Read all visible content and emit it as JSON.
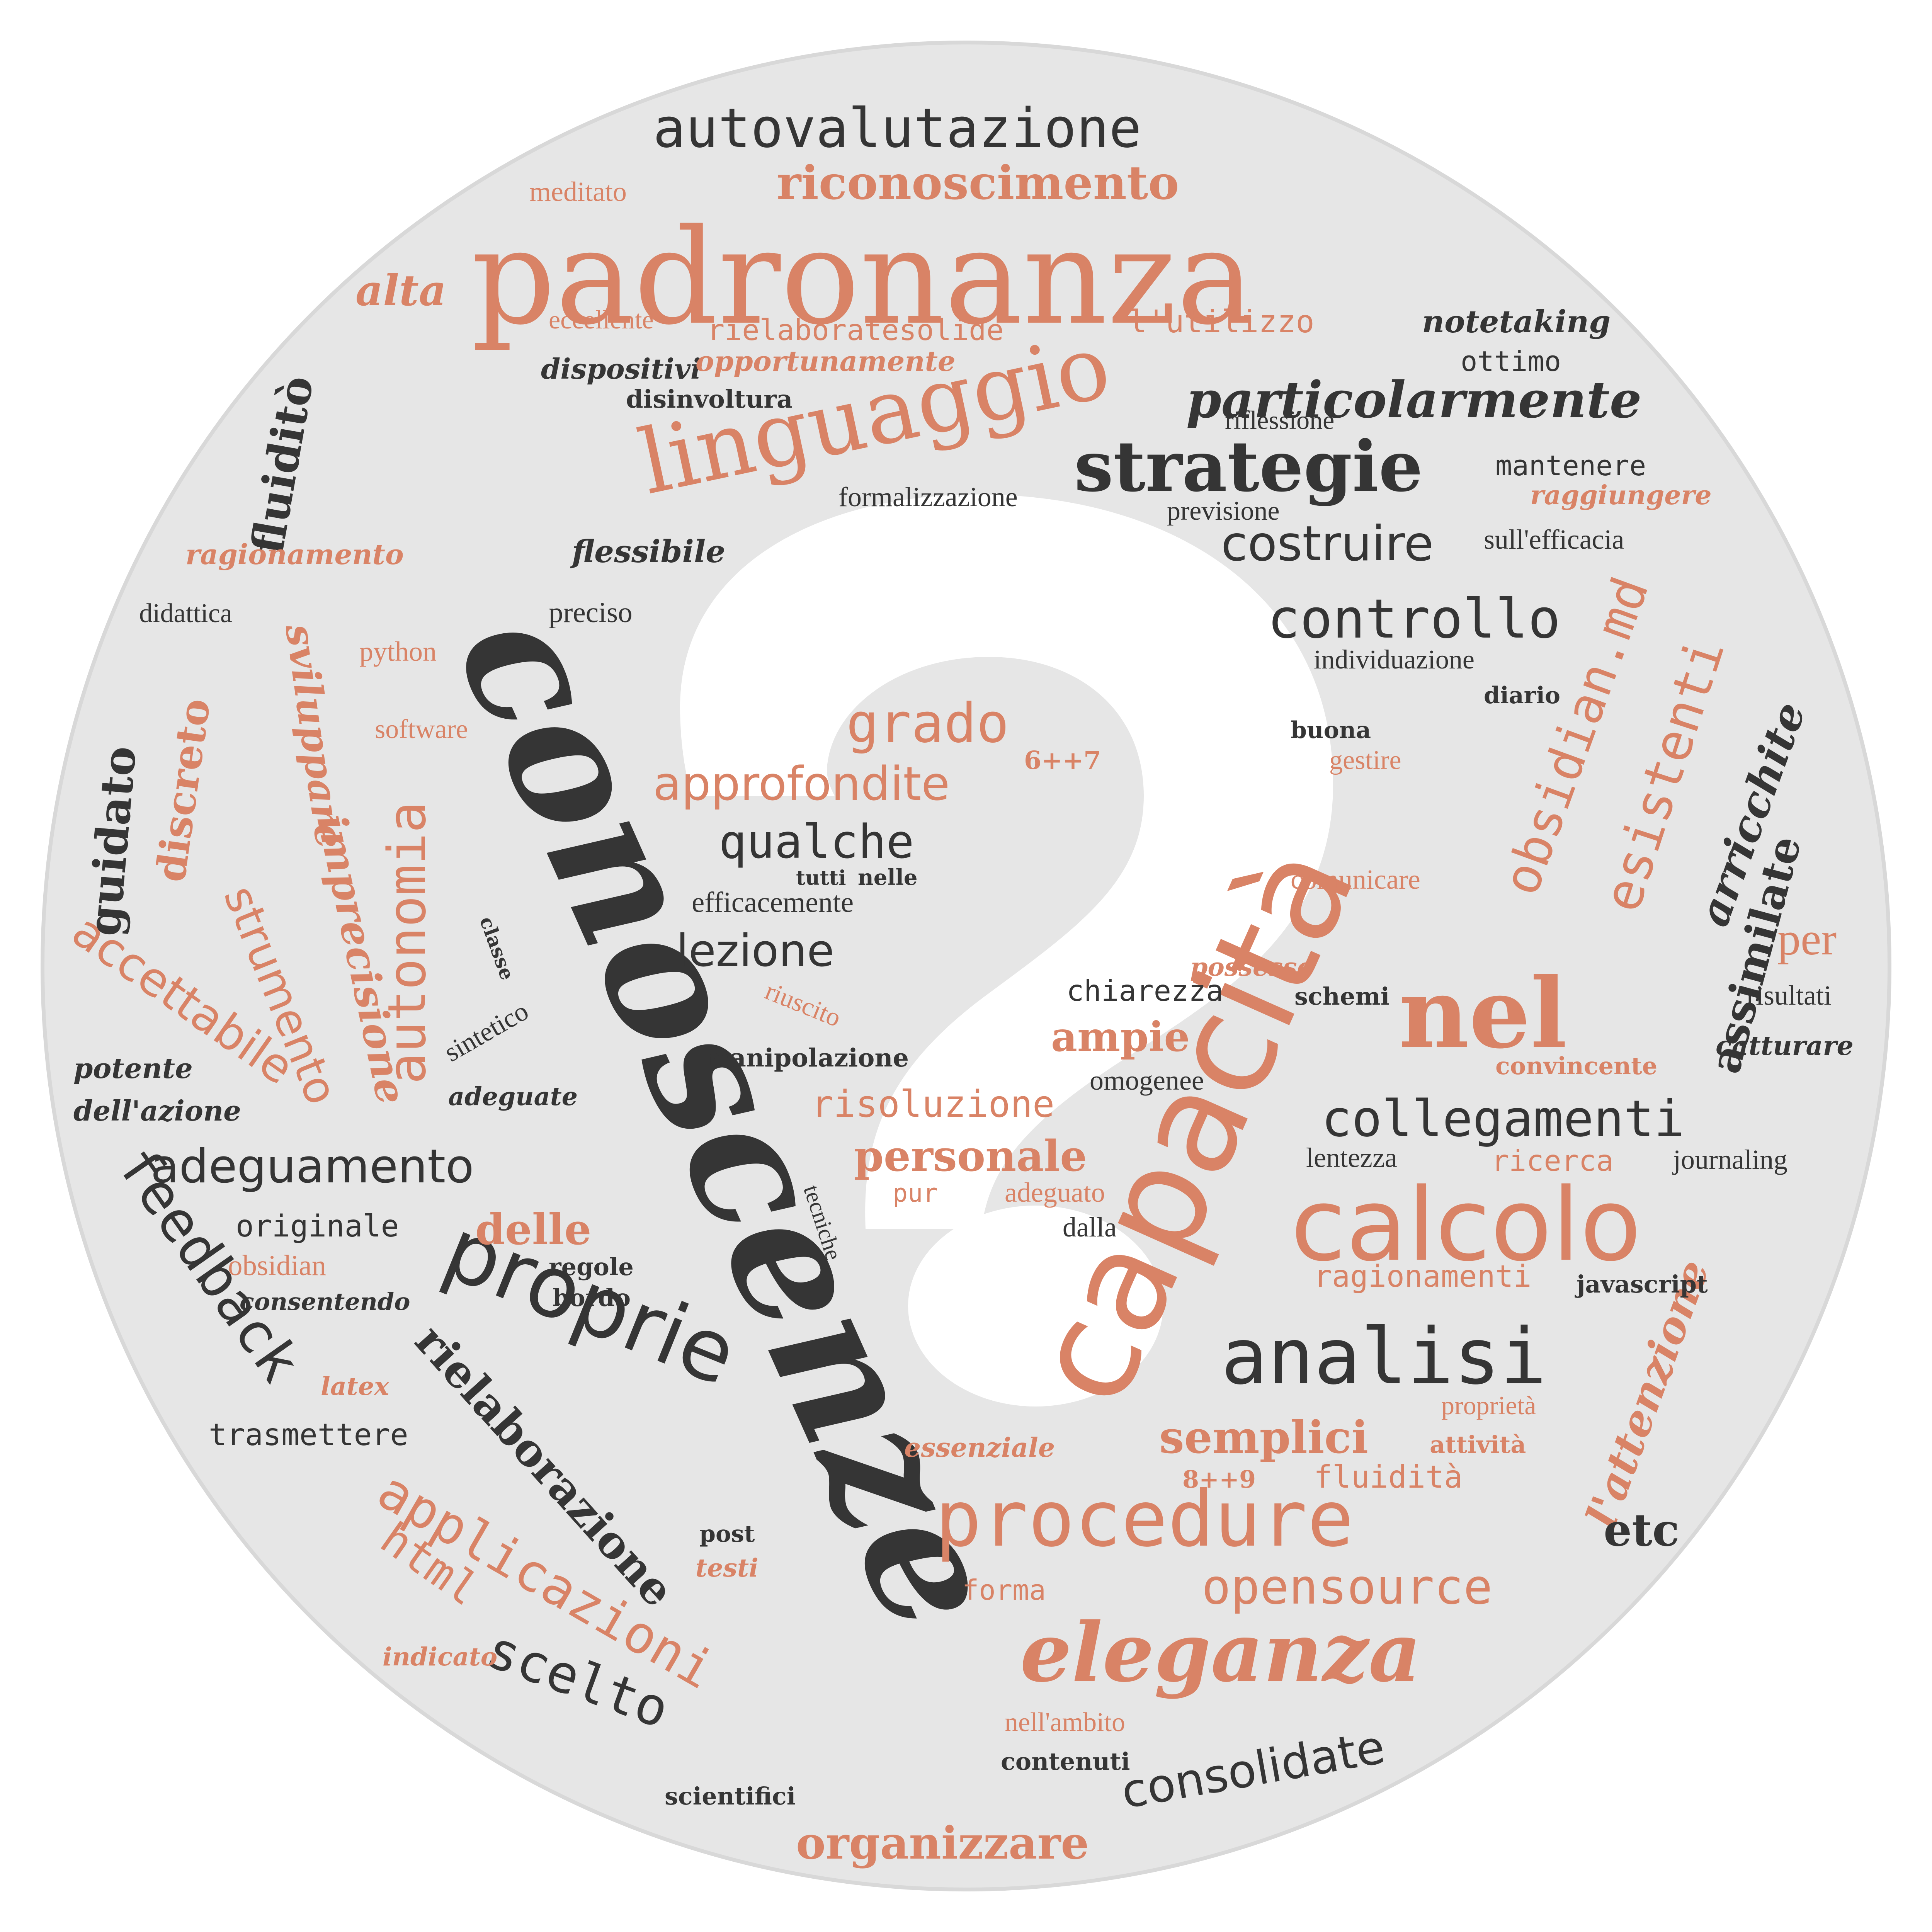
{
  "colors": {
    "background": "#ffffff",
    "disc": "#e6e6e6",
    "disc_edge": "#d8d8d8",
    "question_mark": "#ffffff",
    "orange": "#d98366",
    "dark": "#353535"
  },
  "words": {
    "conoscenze": "conoscenze",
    "padronanza": "padronanza",
    "capacita": "capacità",
    "linguaggio": "linguaggio",
    "calcolo": "calcolo",
    "proprie": "proprie",
    "procedure": "procedure",
    "eleganza": "eleganza",
    "nel": "nel",
    "analisi": "analisi",
    "strategie": "strategie",
    "autovalutazione": "autovalutazione",
    "riconoscimento": "riconoscimento",
    "particolarmente": "particolarmente",
    "collegamenti": "collegamenti",
    "adeguamento": "adeguamento",
    "feedback": "feedback",
    "rielaborazione": "rielaborazione",
    "applicazioni": "applicazioni",
    "scelto": "scelto",
    "controllo": "controllo",
    "costruire": "costruire",
    "obsidian_md": "obsidian.md",
    "esistenti": "esistenti",
    "arricchite": "arricchite",
    "assimilate": "assimilate",
    "grado": "grado",
    "approfondite": "approfondite",
    "qualche": "qualche",
    "lezione": "lezione",
    "autonomia": "autonomia",
    "strumento": "strumento",
    "accettabile": "accettabile",
    "imprecisione": "imprecisione",
    "sviluppare": "sviluppare",
    "discreto": "discreto",
    "guidato": "guidato",
    "fluidito": "fluiditò",
    "alta": "alta",
    "opensource": "opensource",
    "consolidate": "consolidate",
    "organizzare": "organizzare",
    "semplici": "semplici",
    "l_attenzione": "l'attenzione",
    "etc": "etc",
    "risoluzione": "risoluzione",
    "personale": "personale",
    "ampie": "ampie",
    "delle": "delle",
    "html": "html",
    "per": "per",
    "meditato": "meditato",
    "eccellente": "eccellente",
    "rielaboratesolide": "rielaboratesolide",
    "l_utilizzo": "l'utilizzo",
    "notetaking": "notetaking",
    "ottimo": "ottimo",
    "dispositivi": "dispositivi",
    "opportunamente": "opportunamente",
    "disinvoltura": "disinvoltura",
    "riflessione": "riflessione",
    "mantenere": "mantenere",
    "formalizzazione": "formalizzazione",
    "previsione": "previsione",
    "raggiungere": "raggiungere",
    "sull_efficacia": "sull'efficacia",
    "flessibile": "flessibile",
    "ragionamento": "ragionamento",
    "didattica": "didattica",
    "preciso": "preciso",
    "python": "python",
    "individuazione": "individuazione",
    "diario": "diario",
    "buona": "buona",
    "gestire": "gestire",
    "software": "software",
    "six_seven": "6++7",
    "tutti": "tutti",
    "nelle": "nelle",
    "efficacemente": "efficacemente",
    "comunicare": "comunicare",
    "classe": "classe",
    "possesso": "possesso",
    "riuscito": "riuscito",
    "chiarezza": "chiarezza",
    "schemi": "schemi",
    "risultati": "risultati",
    "sintetico": "sintetico",
    "potente": "potente",
    "manipolazione": "manipolazione",
    "convincente": "convincente",
    "catturare": "catturare",
    "dell_azione": "dell'azione",
    "adeguate": "adeguate",
    "omogenee": "omogenee",
    "tecniche": "tecniche",
    "lentezza": "lentezza",
    "ricerca": "ricerca",
    "journaling": "journaling",
    "pur": "pur",
    "adeguato": "adeguato",
    "originale": "originale",
    "dalla": "dalla",
    "obsidian": "obsidian",
    "regole": "regole",
    "bordo": "bordo",
    "ragionamenti": "ragionamenti",
    "javascript": "javascript",
    "consentendo": "consentendo",
    "latex": "latex",
    "proprieta": "proprietà",
    "trasmettere": "trasmettere",
    "essenziale": "essenziale",
    "attivita": "attività",
    "eight_nine": "8++9",
    "fluidita": "fluidità",
    "post": "post",
    "testi": "testi",
    "forma": "forma",
    "indicato": "indicato",
    "nell_ambito": "nell'ambito",
    "contenuti": "contenuti",
    "scientifici": "scientifici"
  }
}
